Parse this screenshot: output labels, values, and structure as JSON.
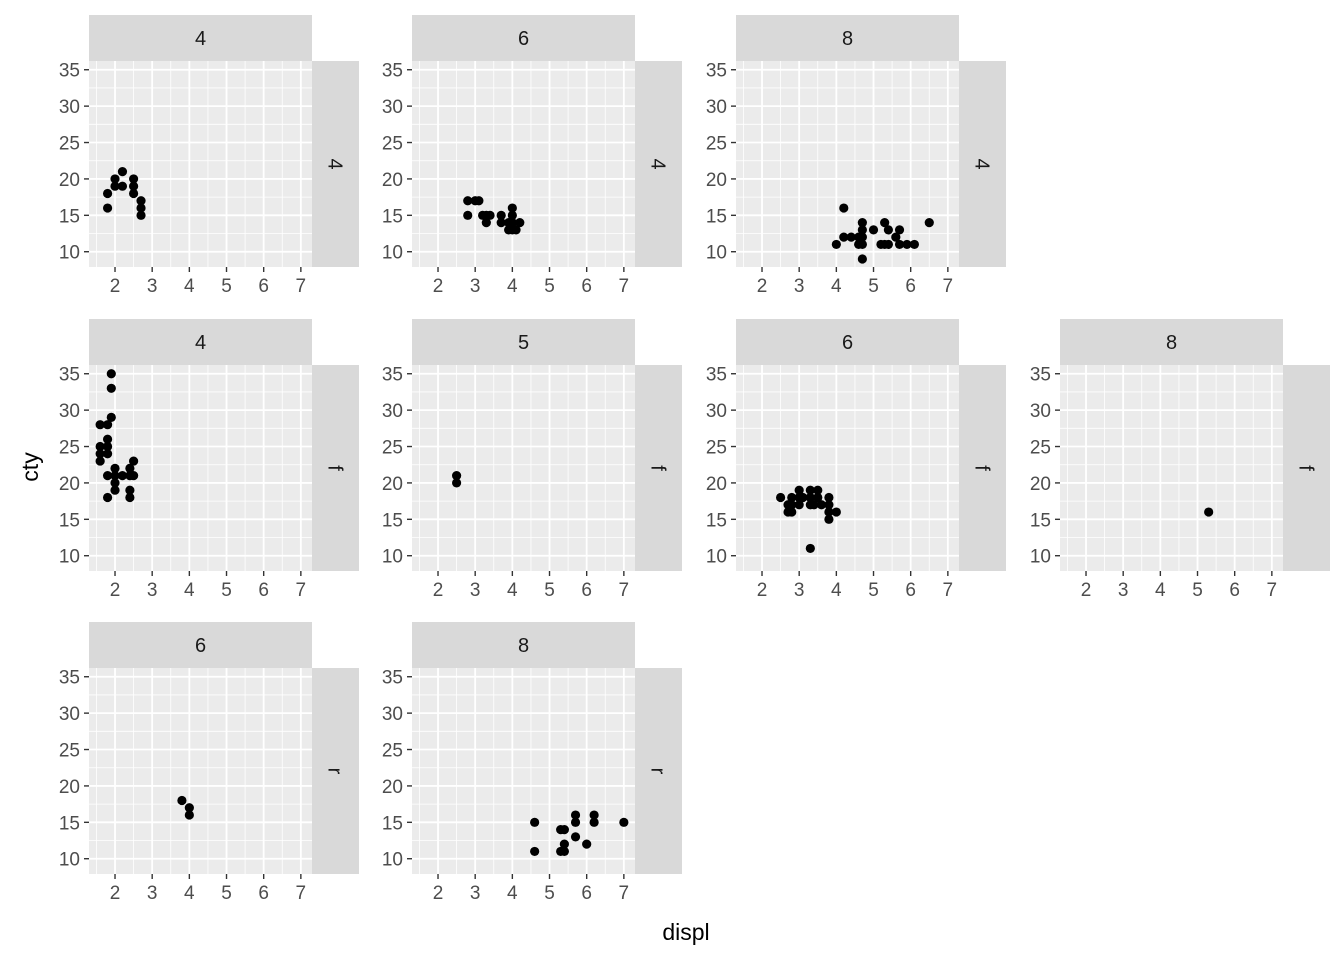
{
  "chart_data": {
    "type": "scatter",
    "xlabel": "displ",
    "ylabel": "cty",
    "xlim": [
      1.3,
      7.3
    ],
    "ylim": [
      7.9,
      36.2
    ],
    "x_ticks": [
      2,
      3,
      4,
      5,
      6,
      7
    ],
    "y_ticks": [
      10,
      15,
      20,
      25,
      30,
      35
    ],
    "panel_background": "#EBEBEB",
    "strip_background": "#D9D9D9",
    "grid_color": "#FFFFFF",
    "point_color": "#000000",
    "panels": [
      {
        "row": 0,
        "col": 0,
        "top_label": "4",
        "side_label": "4",
        "points": [
          [
            1.8,
            18
          ],
          [
            1.8,
            16
          ],
          [
            2.0,
            19
          ],
          [
            2.0,
            20
          ],
          [
            2.2,
            21
          ],
          [
            2.2,
            19
          ],
          [
            2.5,
            20
          ],
          [
            2.5,
            19
          ],
          [
            2.5,
            18
          ],
          [
            2.7,
            17
          ],
          [
            2.7,
            16
          ],
          [
            2.7,
            15
          ]
        ]
      },
      {
        "row": 0,
        "col": 1,
        "top_label": "6",
        "side_label": "4",
        "points": [
          [
            2.8,
            17
          ],
          [
            2.8,
            15
          ],
          [
            3.1,
            17
          ],
          [
            3.0,
            17
          ],
          [
            3.2,
            15
          ],
          [
            3.3,
            14
          ],
          [
            3.3,
            15
          ],
          [
            3.4,
            15
          ],
          [
            3.7,
            15
          ],
          [
            3.7,
            14
          ],
          [
            3.9,
            14
          ],
          [
            4.0,
            16
          ],
          [
            4.0,
            14
          ],
          [
            4.0,
            13
          ],
          [
            4.0,
            15
          ],
          [
            4.2,
            14
          ],
          [
            3.9,
            13
          ],
          [
            4.1,
            13
          ]
        ]
      },
      {
        "row": 0,
        "col": 2,
        "top_label": "8",
        "side_label": "4",
        "points": [
          [
            4.0,
            11
          ],
          [
            4.2,
            16
          ],
          [
            4.2,
            12
          ],
          [
            4.4,
            12
          ],
          [
            4.6,
            11
          ],
          [
            4.6,
            12
          ],
          [
            4.7,
            14
          ],
          [
            4.7,
            13
          ],
          [
            4.7,
            12
          ],
          [
            4.7,
            11
          ],
          [
            4.7,
            9
          ],
          [
            5.0,
            13
          ],
          [
            5.2,
            11
          ],
          [
            5.3,
            11
          ],
          [
            5.3,
            14
          ],
          [
            5.4,
            13
          ],
          [
            5.4,
            11
          ],
          [
            5.6,
            12
          ],
          [
            5.7,
            13
          ],
          [
            5.7,
            11
          ],
          [
            5.9,
            11
          ],
          [
            6.1,
            11
          ],
          [
            6.5,
            14
          ]
        ]
      },
      {
        "row": 1,
        "col": 0,
        "top_label": "4",
        "side_label": "f",
        "points": [
          [
            1.6,
            28
          ],
          [
            1.6,
            24
          ],
          [
            1.6,
            25
          ],
          [
            1.6,
            23
          ],
          [
            1.8,
            28
          ],
          [
            1.8,
            26
          ],
          [
            1.8,
            25
          ],
          [
            1.8,
            24
          ],
          [
            1.8,
            21
          ],
          [
            1.9,
            35
          ],
          [
            1.9,
            33
          ],
          [
            1.9,
            29
          ],
          [
            1.8,
            18
          ],
          [
            2.0,
            22
          ],
          [
            2.0,
            21
          ],
          [
            2.0,
            20
          ],
          [
            2.0,
            19
          ],
          [
            2.2,
            21
          ],
          [
            2.4,
            22
          ],
          [
            2.4,
            21
          ],
          [
            2.4,
            19
          ],
          [
            2.4,
            18
          ],
          [
            2.5,
            23
          ],
          [
            2.5,
            21
          ]
        ]
      },
      {
        "row": 1,
        "col": 1,
        "top_label": "5",
        "side_label": "f",
        "points": [
          [
            2.5,
            21
          ],
          [
            2.5,
            20
          ]
        ]
      },
      {
        "row": 1,
        "col": 2,
        "top_label": "6",
        "side_label": "f",
        "points": [
          [
            2.5,
            18
          ],
          [
            2.7,
            17
          ],
          [
            2.7,
            16
          ],
          [
            2.8,
            18
          ],
          [
            2.8,
            17
          ],
          [
            2.8,
            16
          ],
          [
            3.0,
            19
          ],
          [
            3.0,
            18
          ],
          [
            3.0,
            17
          ],
          [
            3.1,
            18
          ],
          [
            3.3,
            19
          ],
          [
            3.3,
            18
          ],
          [
            3.3,
            17
          ],
          [
            3.3,
            11
          ],
          [
            3.4,
            17
          ],
          [
            3.5,
            19
          ],
          [
            3.5,
            18
          ],
          [
            3.6,
            17
          ],
          [
            3.8,
            18
          ],
          [
            3.8,
            17
          ],
          [
            3.8,
            16
          ],
          [
            3.8,
            15
          ],
          [
            4.0,
            16
          ]
        ]
      },
      {
        "row": 1,
        "col": 3,
        "top_label": "8",
        "side_label": "f",
        "points": [
          [
            5.3,
            16
          ]
        ]
      },
      {
        "row": 2,
        "col": 0,
        "top_label": "6",
        "side_label": "r",
        "points": [
          [
            3.8,
            18
          ],
          [
            4.0,
            17
          ],
          [
            4.0,
            16
          ]
        ]
      },
      {
        "row": 2,
        "col": 1,
        "top_label": "8",
        "side_label": "r",
        "points": [
          [
            4.6,
            15
          ],
          [
            4.6,
            11
          ],
          [
            5.3,
            14
          ],
          [
            5.4,
            14
          ],
          [
            5.3,
            11
          ],
          [
            5.4,
            12
          ],
          [
            5.4,
            11
          ],
          [
            5.7,
            16
          ],
          [
            5.7,
            15
          ],
          [
            5.7,
            13
          ],
          [
            6.0,
            12
          ],
          [
            6.2,
            16
          ],
          [
            6.2,
            15
          ],
          [
            7.0,
            15
          ]
        ]
      }
    ]
  }
}
